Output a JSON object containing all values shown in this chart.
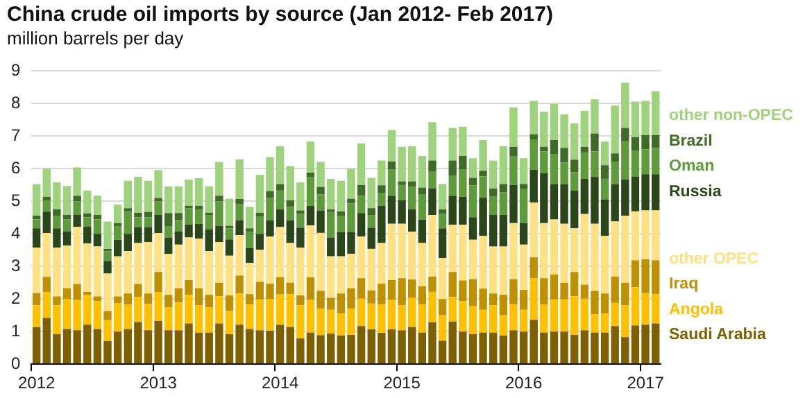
{
  "chart_data": {
    "type": "bar",
    "title": "China crude oil imports by source (Jan 2012- Feb 2017)",
    "subtitle": "million barrels per day",
    "stacked": true,
    "legend": "right",
    "grid": "y",
    "ylim": [
      0,
      9
    ],
    "yticks": [
      0,
      1,
      2,
      3,
      4,
      5,
      6,
      7,
      8,
      9
    ],
    "categories": [
      "2012",
      null,
      null,
      null,
      null,
      null,
      null,
      null,
      null,
      null,
      null,
      null,
      "2013",
      null,
      null,
      null,
      null,
      null,
      null,
      null,
      null,
      null,
      null,
      null,
      "2014",
      null,
      null,
      null,
      null,
      null,
      null,
      null,
      null,
      null,
      null,
      null,
      "2015",
      null,
      null,
      null,
      null,
      null,
      null,
      null,
      null,
      null,
      null,
      null,
      "2016",
      null,
      null,
      null,
      null,
      null,
      null,
      null,
      null,
      null,
      null,
      null,
      "2017",
      null
    ],
    "series": [
      {
        "name": "Saudi Arabia",
        "color": "#7f6000",
        "values": [
          1.14,
          1.42,
          0.92,
          1.08,
          1.04,
          1.21,
          1.08,
          0.71,
          1.0,
          1.08,
          1.29,
          1.04,
          1.33,
          1.04,
          1.04,
          1.25,
          0.97,
          0.97,
          1.25,
          0.92,
          1.21,
          1.08,
          1.04,
          1.03,
          1.21,
          1.14,
          0.79,
          0.97,
          0.89,
          0.94,
          0.88,
          0.9,
          1.17,
          1.07,
          0.96,
          1.07,
          1.04,
          1.14,
          0.97,
          1.29,
          0.72,
          1.31,
          1.0,
          0.92,
          0.97,
          0.97,
          0.88,
          1.04,
          1.0,
          1.36,
          0.97,
          1.0,
          1.0,
          0.9,
          1.04,
          0.97,
          0.97,
          1.17,
          0.83,
          1.19,
          1.21,
          1.25
        ]
      },
      {
        "name": "Angola",
        "color": "#ffc000",
        "values": [
          0.67,
          0.8,
          0.89,
          0.92,
          0.93,
          0.92,
          0.85,
          0.64,
          0.88,
          0.75,
          0.77,
          0.81,
          0.89,
          0.71,
          0.85,
          0.88,
          0.84,
          0.78,
          0.83,
          0.71,
          0.96,
          0.75,
          0.95,
          0.97,
          0.93,
          1.01,
          1.02,
          1.0,
          0.82,
          0.73,
          0.68,
          0.81,
          0.84,
          0.79,
          0.87,
          0.9,
          0.77,
          0.89,
          0.86,
          0.93,
          0.78,
          0.75,
          0.94,
          0.86,
          0.7,
          0.84,
          0.62,
          0.79,
          0.67,
          1.28,
          0.86,
          0.99,
          0.99,
          1.18,
          0.97,
          0.56,
          0.59,
          0.71,
          0.98,
          1.17,
          0.97,
          0.9
        ]
      },
      {
        "name": "Iraq",
        "color": "#bf9000",
        "values": [
          0.37,
          0.46,
          0.27,
          0.33,
          0.49,
          0.09,
          0.15,
          0.28,
          0.2,
          0.34,
          0.4,
          0.32,
          0.61,
          0.38,
          0.44,
          0.45,
          0.52,
          0.38,
          0.42,
          0.48,
          0.55,
          0.32,
          0.54,
          0.47,
          0.53,
          0.35,
          0.3,
          0.7,
          0.54,
          0.37,
          0.61,
          0.62,
          0.63,
          0.4,
          0.64,
          0.61,
          0.83,
          0.57,
          0.56,
          0.47,
          0.5,
          0.77,
          0.63,
          0.83,
          0.65,
          0.36,
          0.63,
          0.78,
          0.61,
          0.64,
          0.81,
          0.76,
          0.51,
          0.75,
          0.43,
          0.72,
          0.61,
          0.81,
          0.69,
          0.83,
          1.04,
          1.04
        ]
      },
      {
        "name": "other OPEC",
        "color": "#ffe083",
        "values": [
          1.4,
          1.35,
          1.5,
          1.31,
          1.76,
          1.49,
          1.53,
          1.15,
          1.23,
          1.3,
          1.26,
          1.58,
          1.2,
          1.26,
          1.34,
          1.31,
          1.52,
          1.34,
          1.25,
          1.22,
          1.24,
          0.96,
          0.98,
          1.45,
          1.54,
          1.22,
          1.47,
          1.59,
          1.78,
          1.27,
          1.14,
          1.06,
          1.28,
          1.28,
          1.25,
          1.73,
          1.67,
          1.47,
          1.33,
          1.89,
          1.26,
          1.45,
          1.71,
          1.21,
          1.62,
          1.44,
          1.48,
          1.72,
          1.39,
          1.68,
          1.69,
          1.69,
          1.81,
          1.34,
          2.17,
          2.06,
          1.77,
          1.69,
          2.06,
          1.5,
          1.5,
          1.53
        ]
      },
      {
        "name": "Russia",
        "color": "#2b4719",
        "values": [
          0.59,
          0.65,
          0.59,
          0.44,
          0.36,
          0.51,
          0.39,
          0.39,
          0.51,
          0.53,
          0.49,
          0.46,
          0.55,
          0.5,
          0.41,
          0.4,
          0.46,
          0.67,
          0.5,
          0.5,
          0.46,
          0.45,
          0.49,
          0.5,
          0.54,
          0.7,
          0.61,
          0.6,
          0.69,
          0.58,
          0.75,
          0.67,
          0.72,
          0.65,
          1.14,
          0.86,
          0.72,
          0.68,
          0.72,
          0.81,
          0.91,
          0.89,
          0.86,
          0.69,
          1.17,
          0.97,
          0.97,
          1.17,
          0.66,
          1.01,
          1.53,
          1.09,
          1.22,
          1.16,
          1.08,
          1.44,
          1.12,
          1.15,
          1.11,
          1.07,
          1.11,
          1.11
        ]
      },
      {
        "name": "Oman",
        "color": "#5e9b3a",
        "values": [
          0.27,
          0.35,
          0.39,
          0.36,
          0.42,
          0.29,
          0.44,
          0.3,
          0.42,
          0.69,
          0.3,
          0.3,
          0.42,
          0.35,
          0.34,
          0.49,
          0.44,
          0.44,
          0.75,
          0.34,
          0.5,
          0.5,
          0.54,
          0.69,
          0.58,
          0.41,
          0.42,
          0.89,
          0.49,
          0.78,
          0.5,
          0.87,
          0.53,
          0.39,
          0.39,
          0.8,
          0.47,
          0.69,
          0.78,
          0.53,
          0.44,
          0.61,
          0.83,
          0.98,
          0.65,
          0.56,
          0.7,
          0.89,
          1.06,
          0.93,
          0.67,
          0.91,
          0.66,
          0.56,
          0.8,
          0.78,
          0.63,
          0.69,
          1.16,
          0.8,
          0.77,
          0.81
        ]
      },
      {
        "name": "Brazil",
        "color": "#3f6b27",
        "values": [
          0.12,
          0.11,
          0.19,
          0.14,
          0.17,
          0.12,
          0.14,
          0.07,
          0.09,
          0.1,
          0.14,
          0.16,
          0.1,
          0.4,
          0.22,
          0.08,
          0.11,
          0.07,
          0.17,
          0.08,
          0.15,
          0.11,
          0.11,
          0.2,
          0.2,
          0.2,
          0.11,
          0.13,
          0.23,
          0.08,
          0.13,
          0.15,
          0.33,
          0.21,
          0.24,
          0.25,
          0.11,
          0.17,
          0.2,
          0.33,
          0.14,
          0.47,
          0.42,
          0.23,
          0.18,
          0.25,
          0.25,
          0.28,
          0.14,
          0.16,
          0.14,
          0.44,
          0.45,
          0.39,
          0.18,
          0.55,
          0.42,
          0.25,
          0.42,
          0.41,
          0.43,
          0.39
        ]
      },
      {
        "name": "other non-OPEC",
        "color": "#9fd27c",
        "values": [
          0.97,
          0.86,
          0.83,
          0.89,
          0.87,
          0.7,
          0.59,
          0.84,
          0.57,
          0.84,
          1.1,
          0.96,
          0.86,
          0.82,
          0.82,
          0.81,
          0.85,
          0.81,
          1.04,
          0.83,
          1.22,
          0.66,
          1.16,
          1.05,
          1.16,
          1.05,
          0.86,
          0.95,
          0.77,
          0.94,
          0.94,
          0.92,
          1.28,
          0.93,
          0.76,
          0.97,
          1.06,
          1.08,
          0.97,
          1.18,
          0.78,
          1.0,
          0.9,
          0.6,
          0.94,
          0.86,
          1.16,
          1.21,
          0.79,
          1.02,
          1.08,
          1.11,
          1.03,
          1.11,
          1.11,
          1.05,
          0.72,
          1.47,
          1.39,
          1.09,
          1.05,
          1.35
        ]
      }
    ]
  }
}
